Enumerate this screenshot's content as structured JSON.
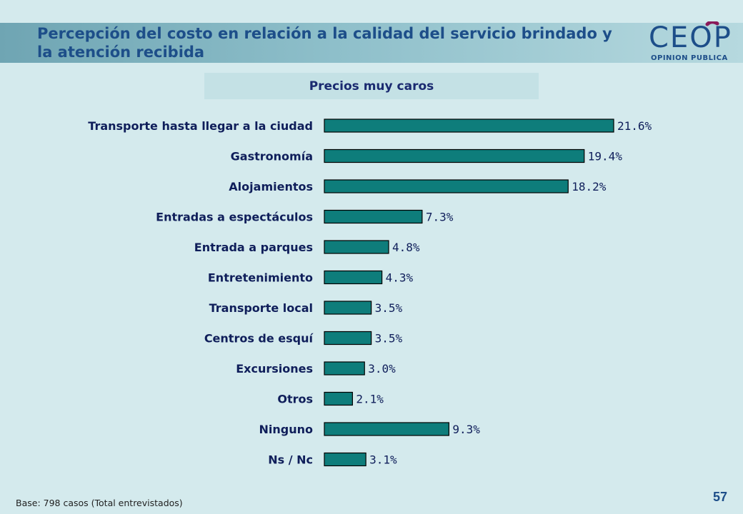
{
  "header": {
    "title": "Percepción del costo en relación a la calidad del servicio brindado y la atención recibida",
    "logo": {
      "word": "CEOP",
      "subtitle": "OPINION PUBLICA"
    }
  },
  "chart_data": {
    "type": "bar",
    "orientation": "horizontal",
    "title": "Precios muy caros",
    "categories": [
      "Transporte hasta llegar a la ciudad",
      "Gastronomía",
      "Alojamientos",
      "Entradas a espectáculos",
      "Entrada a parques",
      "Entretenimiento",
      "Transporte local",
      "Centros de esquí",
      "Excursiones",
      "Otros",
      "Ninguno",
      "Ns / Nc"
    ],
    "values": [
      21.6,
      19.4,
      18.2,
      7.3,
      4.8,
      4.3,
      3.5,
      3.5,
      3.0,
      2.1,
      9.3,
      3.1
    ],
    "value_labels": [
      "21.6%",
      "19.4%",
      "18.2%",
      "7.3%",
      "4.8%",
      "4.3%",
      "3.5%",
      "3.5%",
      "3.0%",
      "2.1%",
      "9.3%",
      "3.1%"
    ],
    "bar_color": "#0e7d7b",
    "grid": false,
    "legend": "none"
  },
  "footer": {
    "base_note": "Base: 798 casos (Total entrevistados)",
    "page_number": "57"
  },
  "colors": {
    "background": "#d4eaed",
    "title_text": "#1d4e89",
    "subtitle_text": "#1a2a70",
    "accent_logo": "#8a1a5a"
  }
}
